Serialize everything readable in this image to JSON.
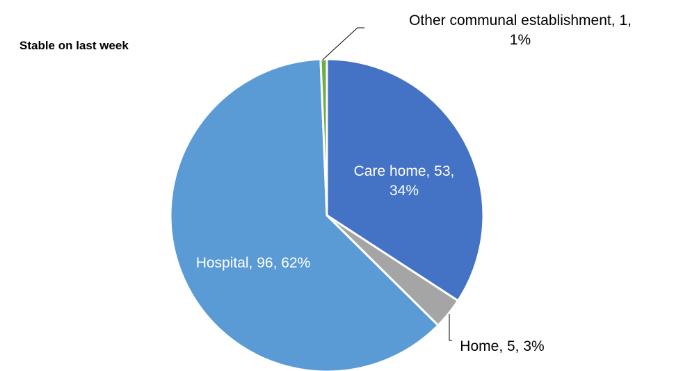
{
  "chart_data": {
    "type": "pie",
    "subtitle": "Stable on last week",
    "slices": [
      {
        "label": "Care home",
        "value": 53,
        "percent": "34%",
        "color": "#4472C4",
        "label_lines": [
          "Care home, 53,",
          "34%"
        ],
        "label_color": "#ffffff"
      },
      {
        "label": "Home",
        "value": 5,
        "percent": "3%",
        "color": "#A5A5A5",
        "label_lines": [
          "Home, 5, 3%"
        ],
        "label_color": "#000000"
      },
      {
        "label": "Hospital",
        "value": 96,
        "percent": "62%",
        "color": "#5B9BD5",
        "label_lines": [
          "Hospital, 96, 62%"
        ],
        "label_color": "#ffffff"
      },
      {
        "label": "Other communal establishment",
        "value": 1,
        "percent": "1%",
        "color": "#70AD47",
        "label_lines": [
          "Other communal establishment, 1,",
          "1%"
        ],
        "label_color": "#000000"
      }
    ]
  }
}
